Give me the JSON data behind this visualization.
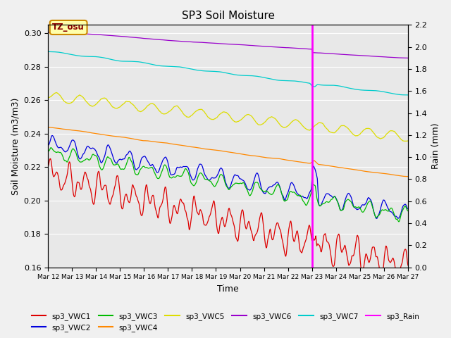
{
  "title": "SP3 Soil Moisture",
  "xlabel": "Time",
  "ylabel_left": "Soil Moisture (m3/m3)",
  "ylabel_right": "Rain (mm)",
  "ylim_left": [
    0.16,
    0.305
  ],
  "ylim_right": [
    0.0,
    2.2
  ],
  "xtick_labels": [
    "Mar 12",
    "Mar 13",
    "Mar 14",
    "Mar 15",
    "Mar 16",
    "Mar 17",
    "Mar 18",
    "Mar 19",
    "Mar 20",
    "Mar 21",
    "Mar 22",
    "Mar 23",
    "Mar 24",
    "Mar 25",
    "Mar 26",
    "Mar 27"
  ],
  "yticks_left": [
    0.16,
    0.18,
    0.2,
    0.22,
    0.24,
    0.26,
    0.28,
    0.3
  ],
  "yticks_right": [
    0.0,
    0.2,
    0.4,
    0.6,
    0.8,
    1.0,
    1.2,
    1.4,
    1.6,
    1.8,
    2.0,
    2.2
  ],
  "rain_day": 11,
  "background_outer": "#f0f0f0",
  "background_inner": "#e8e8e8",
  "annotation_text": "TZ_osu",
  "colors": {
    "sp3_VWC1": "#dd0000",
    "sp3_VWC2": "#0000dd",
    "sp3_VWC3": "#00bb00",
    "sp3_VWC4": "#ff8800",
    "sp3_VWC5": "#dddd00",
    "sp3_VWC6": "#9900cc",
    "sp3_VWC7": "#00cccc",
    "sp3_Rain": "#ff00ff"
  }
}
